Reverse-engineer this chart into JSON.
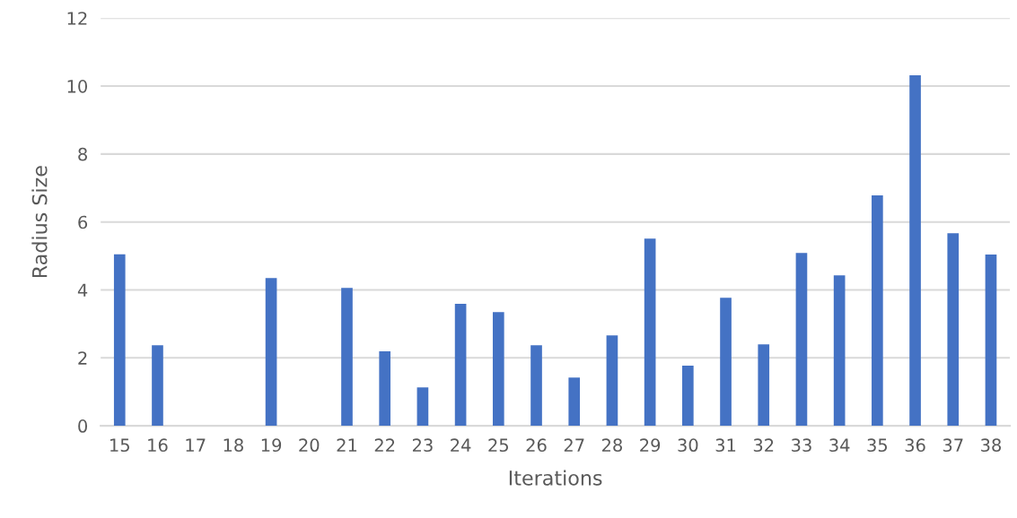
{
  "chart_data": {
    "type": "bar",
    "xlabel": "Iterations",
    "ylabel": "Radius Size",
    "categories": [
      "15",
      "16",
      "17",
      "18",
      "19",
      "20",
      "21",
      "22",
      "23",
      "24",
      "25",
      "26",
      "27",
      "28",
      "29",
      "30",
      "31",
      "32",
      "33",
      "34",
      "35",
      "36",
      "37",
      "38"
    ],
    "values": [
      5.05,
      2.37,
      0,
      0,
      4.35,
      0,
      4.06,
      2.19,
      1.13,
      3.59,
      3.35,
      2.37,
      1.42,
      2.66,
      5.51,
      1.77,
      3.77,
      2.4,
      5.09,
      4.43,
      6.78,
      10.32,
      5.67,
      5.04
    ],
    "color": "#4472c4",
    "ylim": [
      0,
      12
    ],
    "yticks": [
      0,
      2,
      4,
      6,
      8,
      10,
      12
    ],
    "grid": "y"
  }
}
